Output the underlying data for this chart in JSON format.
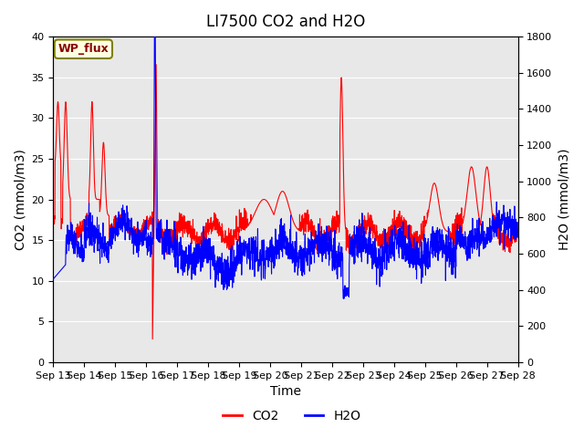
{
  "title": "LI7500 CO2 and H2O",
  "xlabel": "Time",
  "ylabel_left": "CO2 (mmol/m3)",
  "ylabel_right": "H2O (mmol/m3)",
  "xlim": [
    0,
    15
  ],
  "ylim_left": [
    0,
    40
  ],
  "ylim_right": [
    0,
    1800
  ],
  "xtick_labels": [
    "Sep 13",
    "Sep 14",
    "Sep 15",
    "Sep 16",
    "Sep 17",
    "Sep 18",
    "Sep 19",
    "Sep 20",
    "Sep 21",
    "Sep 22",
    "Sep 23",
    "Sep 24",
    "Sep 25",
    "Sep 26",
    "Sep 27",
    "Sep 28"
  ],
  "yticks_left": [
    0,
    5,
    10,
    15,
    20,
    25,
    30,
    35,
    40
  ],
  "yticks_right": [
    0,
    200,
    400,
    600,
    800,
    1000,
    1200,
    1400,
    1600,
    1800
  ],
  "legend_labels": [
    "CO2",
    "H2O"
  ],
  "legend_colors": [
    "red",
    "blue"
  ],
  "annotation_text": "WP_flux",
  "bg_color": "#e8e8e8",
  "grid_color": "white",
  "title_fontsize": 12,
  "axis_fontsize": 10,
  "tick_fontsize": 8
}
